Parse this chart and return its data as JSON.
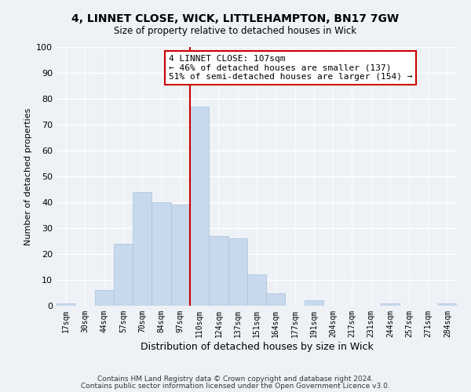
{
  "title": "4, LINNET CLOSE, WICK, LITTLEHAMPTON, BN17 7GW",
  "subtitle": "Size of property relative to detached houses in Wick",
  "xlabel": "Distribution of detached houses by size in Wick",
  "ylabel": "Number of detached properties",
  "bar_labels": [
    "17sqm",
    "30sqm",
    "44sqm",
    "57sqm",
    "70sqm",
    "84sqm",
    "97sqm",
    "110sqm",
    "124sqm",
    "137sqm",
    "151sqm",
    "164sqm",
    "177sqm",
    "191sqm",
    "204sqm",
    "217sqm",
    "231sqm",
    "244sqm",
    "257sqm",
    "271sqm",
    "284sqm"
  ],
  "bar_values": [
    1,
    0,
    6,
    24,
    44,
    40,
    39,
    77,
    27,
    26,
    12,
    5,
    0,
    2,
    0,
    0,
    0,
    1,
    0,
    0,
    1
  ],
  "bar_color": "#c8d9ed",
  "bar_edge_color": "#a8c0dc",
  "vline_color": "#cc0000",
  "annotation_text": "4 LINNET CLOSE: 107sqm\n← 46% of detached houses are smaller (137)\n51% of semi-detached houses are larger (154) →",
  "annotation_box_color": "#ffffff",
  "annotation_box_edge_color": "#cc0000",
  "ylim": [
    0,
    100
  ],
  "yticks": [
    0,
    10,
    20,
    30,
    40,
    50,
    60,
    70,
    80,
    90,
    100
  ],
  "background_color": "#eef2f7",
  "grid_color": "#ffffff",
  "footer_line1": "Contains HM Land Registry data © Crown copyright and database right 2024.",
  "footer_line2": "Contains public sector information licensed under the Open Government Licence v3.0."
}
